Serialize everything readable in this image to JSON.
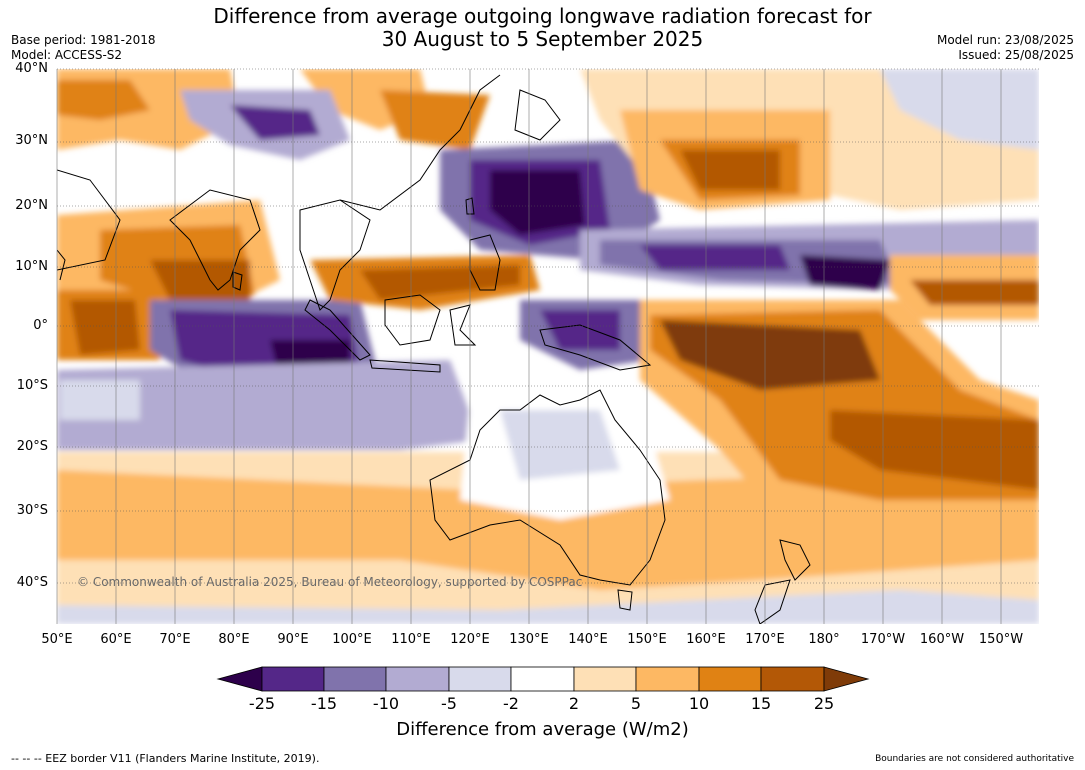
{
  "title_line1": "Difference from average outgoing longwave radiation forecast for",
  "title_line2": "30 August to 5 September 2025",
  "base_period": "Base period: 1981-2018",
  "model": "Model: ACCESS-S2",
  "model_run": "Model run: 23/08/2025",
  "issued": "Issued: 25/08/2025",
  "lat_labels": [
    "40°N",
    "30°N",
    "20°N",
    "10°N",
    "0°",
    "10°S",
    "20°S",
    "30°S",
    "40°S"
  ],
  "lon_labels": [
    "50°E",
    "60°E",
    "70°E",
    "80°E",
    "90°E",
    "100°E",
    "110°E",
    "120°E",
    "130°E",
    "140°E",
    "150°E",
    "160°E",
    "170°E",
    "180°",
    "170°W",
    "160°W",
    "150°W"
  ],
  "copyright": "© Commonwealth of Australia 2025, Bureau of Meteorology, supported by COSPPac",
  "colorbar": {
    "title": "Difference from average (W/m2)",
    "ticks": [
      "-25",
      "-15",
      "-10",
      "-5",
      "-2",
      "2",
      "5",
      "10",
      "15",
      "25"
    ],
    "colors": [
      "#2d004b",
      "#542788",
      "#8073ac",
      "#b2abd2",
      "#d8daeb",
      "#ffffff",
      "#fee0b6",
      "#fdb863",
      "#e08214",
      "#b35806",
      "#7f3b08"
    ]
  },
  "footer_left": "--  --  -- EEZ border V11 (Flanders Marine Institute, 2019).",
  "footer_right": "Boundaries are not considered authoritative"
}
